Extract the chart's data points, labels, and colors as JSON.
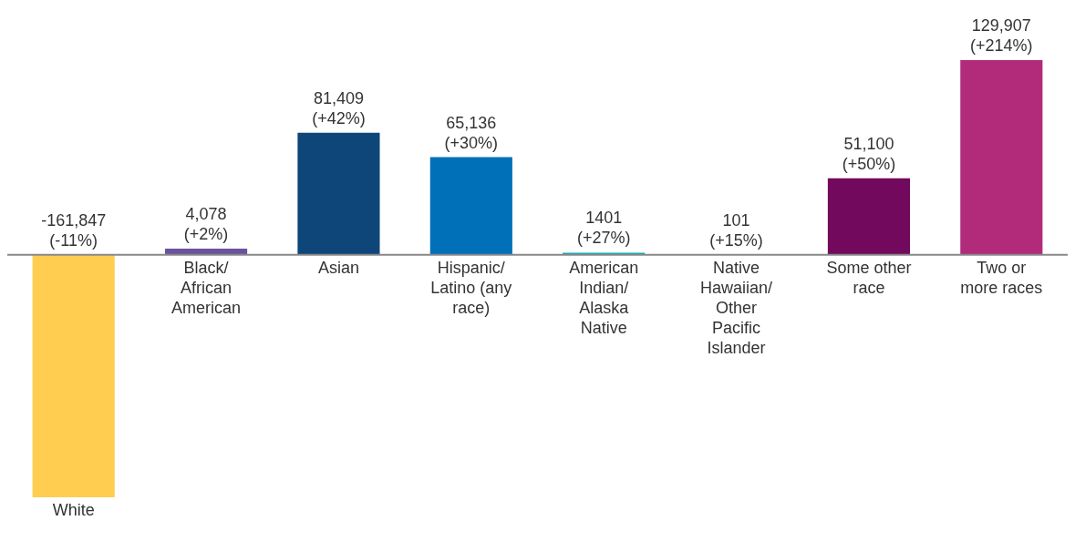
{
  "chart_data": {
    "type": "bar",
    "categories": [
      "White",
      "Black/ African American",
      "Asian",
      "Hispanic/ Latino (any race)",
      "American Indian/ Alaska Native",
      "Native Hawaiian/ Other Pacific Islander",
      "Some other race",
      "Two or more races"
    ],
    "values": [
      -161847,
      4078,
      81409,
      65136,
      1401,
      101,
      51100,
      129907
    ],
    "colors": [
      "#ffcd4f",
      "#6b52a1",
      "#0e467a",
      "#0070b8",
      "#00b2b8",
      "#f07e2b",
      "#72095c",
      "#b22a7a"
    ],
    "value_labels": [
      "-161,847 (-11%)",
      "4,078 (+2%)",
      "81,409 (+42%)",
      "65,136 (+30%)",
      "1401 (+27%)",
      "101 (+15%)",
      "51,100 (+50%)",
      "129,907 (+214%)"
    ]
  }
}
